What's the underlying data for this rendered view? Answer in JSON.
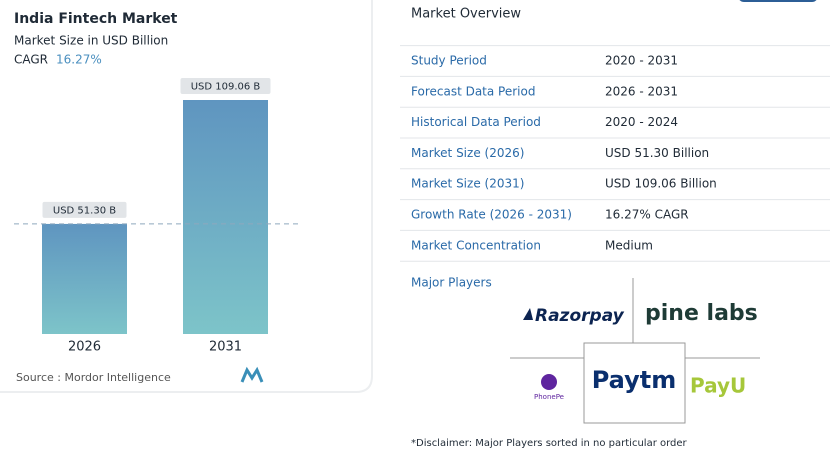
{
  "chart_data": {
    "type": "bar",
    "title": "India Fintech Market",
    "subtitle": "Market Size in USD Billion",
    "cagr_label": "CAGR",
    "cagr_value": "16.27%",
    "categories": [
      "2026",
      "2031"
    ],
    "values": [
      51.3,
      109.06
    ],
    "value_labels": [
      "USD 51.30 B",
      "USD 109.06 B"
    ],
    "source": "Source :  Mordor Intelligence"
  },
  "overview": {
    "title": "Market Overview",
    "rows": [
      {
        "label": "Study Period",
        "value": "2020 - 2031"
      },
      {
        "label": "Forecast Data Period",
        "value": "2026 - 2031"
      },
      {
        "label": "Historical Data Period",
        "value": "2020 - 2024"
      },
      {
        "label": "Market Size (2026)",
        "value": "USD 51.30 Billion"
      },
      {
        "label": "Market Size (2031)",
        "value": "USD 109.06 Billion"
      },
      {
        "label": "Growth Rate (2026 - 2031)",
        "value": "16.27% CAGR"
      },
      {
        "label": "Market Concentration",
        "value": "Medium"
      }
    ]
  },
  "major_players": {
    "title": "Major Players",
    "logos": [
      "Razorpay",
      "pine labs",
      "PhonePe",
      "Paytm",
      "PayU"
    ]
  },
  "disclaimer": "*Disclaimer: Major Players sorted in no particular order"
}
